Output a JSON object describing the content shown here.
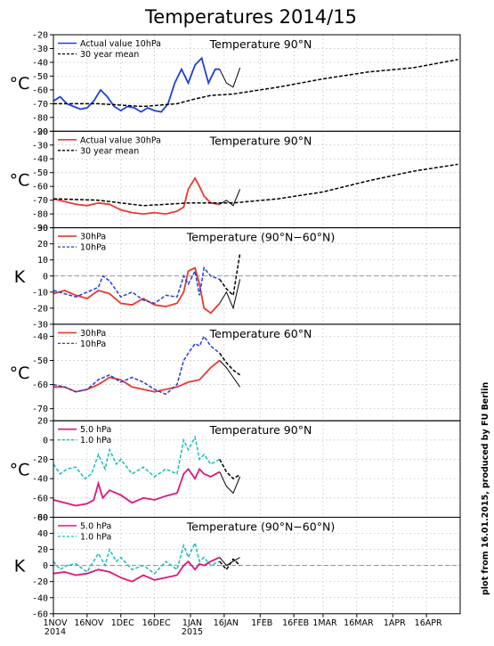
{
  "title": "Temperatures 2014/15",
  "credit": "plot from 16.01.2015, produced by FU Berlin",
  "x_axis": {
    "tick_labels": [
      "1NOV",
      "16NOV",
      "1DEC",
      "16DEC",
      "1JAN",
      "16JAN",
      "1FEB",
      "16FEB",
      "1MAR",
      "16MAR",
      "1APR",
      "16APR"
    ],
    "year_labels": [
      {
        "at": "1NOV",
        "text": "2014"
      },
      {
        "at": "1JAN",
        "text": "2015"
      }
    ]
  },
  "colors": {
    "red": "#e8392f",
    "blue": "#1f3fdf",
    "magenta": "#e0157a",
    "cyan": "#1cbcbc",
    "black": "#000000",
    "grid": "#b8b8b8"
  },
  "chart_data": [
    {
      "type": "line",
      "title": "Temperature 90°N",
      "ylabel": "°C",
      "ylim": [
        -90,
        -20
      ],
      "yticks": [
        -20,
        -30,
        -40,
        -50,
        -60,
        -70,
        -80,
        -90
      ],
      "grid": true,
      "legend_position": "top-left",
      "series": [
        {
          "name": "Actual value 10hPa",
          "style": "solid",
          "color": "blue",
          "x": [
            0,
            3,
            6,
            9,
            12,
            15,
            18,
            21,
            24,
            27,
            30,
            33,
            36,
            39,
            42,
            45,
            48,
            51,
            54,
            57,
            60,
            63,
            66,
            69,
            72,
            74
          ],
          "y": [
            -68,
            -65,
            -70,
            -72,
            -74,
            -73,
            -68,
            -60,
            -65,
            -72,
            -75,
            -72,
            -73,
            -76,
            -73,
            -75,
            -76,
            -70,
            -55,
            -45,
            -55,
            -42,
            -37,
            -55,
            -45,
            -45
          ]
        },
        {
          "name": "",
          "style": "thin",
          "color": "black",
          "x": [
            74,
            77,
            80,
            83
          ],
          "y": [
            -45,
            -55,
            -58,
            -44
          ]
        },
        {
          "name": "30 year mean",
          "style": "dashed",
          "color": "black",
          "x": [
            0,
            20,
            40,
            55,
            62,
            70,
            80,
            100,
            120,
            140,
            160,
            180
          ],
          "y": [
            -70,
            -70,
            -72,
            -70,
            -67,
            -64,
            -63,
            -58,
            -52,
            -47,
            -44,
            -38
          ]
        }
      ]
    },
    {
      "type": "line",
      "title": "Temperature 90°N",
      "ylabel": "°C",
      "ylim": [
        -90,
        -20
      ],
      "yticks": [
        -20,
        -30,
        -40,
        -50,
        -60,
        -70,
        -80,
        -90
      ],
      "grid": true,
      "legend_position": "top-left",
      "series": [
        {
          "name": "Actual value 30hPa",
          "style": "solid",
          "color": "red",
          "x": [
            0,
            5,
            10,
            15,
            20,
            25,
            30,
            35,
            40,
            45,
            50,
            55,
            58,
            60,
            63,
            65,
            67,
            70,
            74
          ],
          "y": [
            -69,
            -71,
            -73,
            -74,
            -72,
            -73,
            -77,
            -79,
            -80,
            -79,
            -80,
            -78,
            -75,
            -62,
            -54,
            -60,
            -67,
            -72,
            -73
          ]
        },
        {
          "name": "",
          "style": "thin",
          "color": "black",
          "x": [
            74,
            77,
            80,
            83
          ],
          "y": [
            -73,
            -70,
            -74,
            -62
          ]
        },
        {
          "name": "30 year mean",
          "style": "dashed",
          "color": "black",
          "x": [
            0,
            20,
            40,
            60,
            80,
            100,
            120,
            140,
            160,
            180
          ],
          "y": [
            -69,
            -70,
            -74,
            -72,
            -72,
            -69,
            -64,
            -56,
            -49,
            -44
          ]
        }
      ]
    },
    {
      "type": "line",
      "title": "Temperature (90°N−60°N)",
      "ylabel": "K",
      "ylim": [
        -30,
        30
      ],
      "yticks": [
        30,
        20,
        10,
        0,
        -10,
        -20,
        -30
      ],
      "zero_line": true,
      "grid": true,
      "legend_position": "top-left",
      "series": [
        {
          "name": "30hPa",
          "style": "solid",
          "color": "red",
          "x": [
            0,
            5,
            10,
            15,
            20,
            25,
            30,
            35,
            40,
            45,
            50,
            55,
            58,
            60,
            63,
            65,
            67,
            70,
            74
          ],
          "y": [
            -11,
            -9,
            -12,
            -14,
            -9,
            -11,
            -17,
            -18,
            -14,
            -18,
            -19,
            -17,
            -10,
            3,
            5,
            -5,
            -20,
            -23,
            -17
          ]
        },
        {
          "name": "",
          "style": "thin",
          "color": "black",
          "x": [
            74,
            77,
            80,
            83
          ],
          "y": [
            -17,
            -10,
            -20,
            -2
          ]
        },
        {
          "name": "10hPa",
          "style": "dashed",
          "color": "blue",
          "x": [
            0,
            5,
            10,
            15,
            20,
            22,
            25,
            30,
            35,
            40,
            45,
            50,
            55,
            58,
            60,
            63,
            65,
            67,
            70,
            74
          ],
          "y": [
            -9,
            -11,
            -13,
            -10,
            -7,
            0,
            -3,
            -13,
            -10,
            -15,
            -17,
            -12,
            -13,
            0,
            -5,
            3,
            -12,
            5,
            0,
            -2
          ]
        },
        {
          "name": "",
          "style": "dashed",
          "color": "black",
          "x": [
            74,
            77,
            80,
            83
          ],
          "y": [
            -2,
            -8,
            -12,
            14
          ]
        }
      ]
    },
    {
      "type": "line",
      "title": "Temperature 60°N",
      "ylabel": "°C",
      "ylim": [
        -75,
        -35
      ],
      "yticks": [
        -40,
        -50,
        -60,
        -70
      ],
      "grid": true,
      "legend_position": "top-left",
      "series": [
        {
          "name": "30hPa",
          "style": "solid",
          "color": "red",
          "x": [
            0,
            5,
            10,
            15,
            20,
            25,
            30,
            35,
            40,
            45,
            50,
            55,
            60,
            65,
            70,
            74
          ],
          "y": [
            -61,
            -61,
            -63,
            -62,
            -60,
            -57,
            -58,
            -61,
            -62,
            -63,
            -62,
            -61,
            -59,
            -58,
            -53,
            -50
          ]
        },
        {
          "name": "",
          "style": "thin",
          "color": "black",
          "x": [
            74,
            77,
            80,
            83
          ],
          "y": [
            -50,
            -53,
            -57,
            -61
          ]
        },
        {
          "name": "10hPa",
          "style": "dashed",
          "color": "blue",
          "x": [
            0,
            5,
            10,
            15,
            20,
            25,
            30,
            35,
            40,
            45,
            50,
            55,
            58,
            60,
            63,
            65,
            67,
            70,
            74
          ],
          "y": [
            -60,
            -61,
            -63,
            -62,
            -58,
            -56,
            -59,
            -57,
            -59,
            -62,
            -64,
            -60,
            -50,
            -47,
            -43,
            -44,
            -40,
            -44,
            -47
          ]
        },
        {
          "name": "",
          "style": "dashed",
          "color": "black",
          "x": [
            74,
            77,
            80,
            83
          ],
          "y": [
            -47,
            -51,
            -54,
            -56
          ]
        }
      ]
    },
    {
      "type": "line",
      "title": "Temperature 90°N",
      "ylabel": "°C",
      "ylim": [
        -80,
        20
      ],
      "yticks": [
        20,
        0,
        -20,
        -40,
        -60,
        -80
      ],
      "grid": true,
      "legend_position": "top-left",
      "series": [
        {
          "name": "5.0 hPa",
          "style": "solid",
          "color": "magenta",
          "x": [
            0,
            5,
            10,
            15,
            18,
            20,
            22,
            25,
            30,
            35,
            40,
            45,
            50,
            55,
            58,
            60,
            63,
            65,
            67,
            70,
            74
          ],
          "y": [
            -62,
            -65,
            -68,
            -66,
            -62,
            -45,
            -60,
            -52,
            -57,
            -65,
            -60,
            -62,
            -58,
            -55,
            -35,
            -30,
            -40,
            -30,
            -35,
            -38,
            -33
          ]
        },
        {
          "name": "",
          "style": "thin",
          "color": "black",
          "x": [
            74,
            77,
            80,
            83
          ],
          "y": [
            -33,
            -48,
            -55,
            -38
          ]
        },
        {
          "name": "1.0 hPa",
          "style": "dashed",
          "color": "cyan",
          "x": [
            0,
            3,
            6,
            10,
            14,
            17,
            20,
            23,
            25,
            28,
            30,
            35,
            40,
            45,
            50,
            55,
            58,
            60,
            63,
            65,
            67,
            70,
            74
          ],
          "y": [
            -25,
            -35,
            -30,
            -28,
            -40,
            -35,
            -15,
            -30,
            -10,
            -25,
            -20,
            -35,
            -28,
            -38,
            -30,
            -35,
            0,
            -10,
            3,
            -20,
            -15,
            -25,
            -20
          ]
        },
        {
          "name": "",
          "style": "dashed",
          "color": "black",
          "x": [
            74,
            77,
            80,
            83
          ],
          "y": [
            -20,
            -33,
            -40,
            -36
          ]
        }
      ]
    },
    {
      "type": "line",
      "title": "Temperature (90°N−60°N)",
      "ylabel": "K",
      "ylim": [
        -60,
        60
      ],
      "yticks": [
        60,
        40,
        20,
        0,
        -20,
        -40,
        -60
      ],
      "zero_line": true,
      "grid": true,
      "legend_position": "top-left",
      "series": [
        {
          "name": "5.0 hPa",
          "style": "solid",
          "color": "magenta",
          "x": [
            0,
            5,
            10,
            15,
            20,
            25,
            30,
            35,
            40,
            45,
            50,
            55,
            58,
            60,
            63,
            65,
            67,
            70,
            74
          ],
          "y": [
            -10,
            -8,
            -12,
            -10,
            -5,
            -8,
            -15,
            -20,
            -12,
            -18,
            -15,
            -12,
            0,
            5,
            -5,
            2,
            0,
            5,
            10
          ]
        },
        {
          "name": "",
          "style": "thin",
          "color": "black",
          "x": [
            74,
            77,
            80,
            83
          ],
          "y": [
            10,
            0,
            5,
            10
          ]
        },
        {
          "name": "1.0 hPa",
          "style": "dashed",
          "color": "cyan",
          "x": [
            0,
            3,
            6,
            10,
            15,
            20,
            23,
            25,
            28,
            30,
            35,
            40,
            45,
            50,
            55,
            58,
            60,
            63,
            65,
            67,
            70,
            74
          ],
          "y": [
            5,
            -5,
            0,
            2,
            -8,
            15,
            0,
            20,
            5,
            10,
            -5,
            0,
            -10,
            5,
            -5,
            25,
            10,
            28,
            5,
            10,
            0,
            5
          ]
        },
        {
          "name": "",
          "style": "dashed",
          "color": "black",
          "x": [
            74,
            77,
            80,
            83
          ],
          "y": [
            5,
            -5,
            8,
            0
          ]
        }
      ]
    }
  ]
}
